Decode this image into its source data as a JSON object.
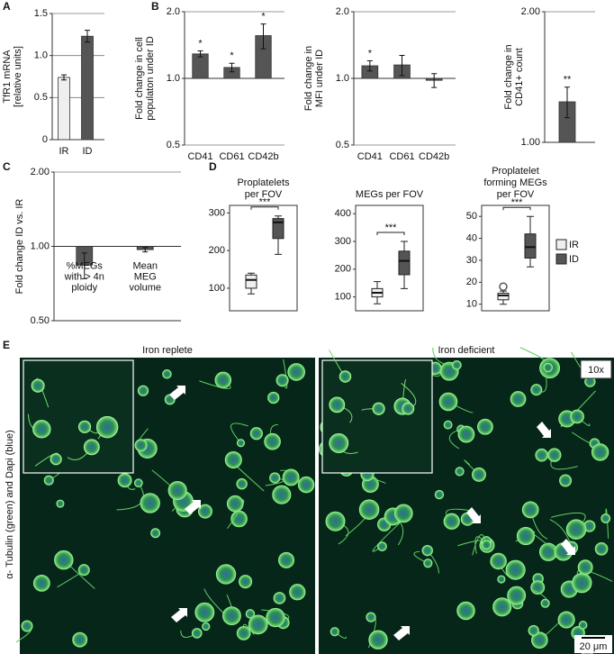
{
  "chart_data": [
    {
      "type": "bar",
      "panel": "A",
      "ylabel": [
        "TfR1 mRNA",
        "[relative units]"
      ],
      "categories": [
        "IR",
        "ID"
      ],
      "values": [
        0.74,
        1.23
      ],
      "errors": [
        0.03,
        0.07
      ],
      "colors": [
        "#efefef",
        "#555555"
      ],
      "scale": "linear",
      "base": 0,
      "ylim": [
        0,
        1.5
      ],
      "yticks": [
        0,
        0.5,
        {
          "value": 1,
          "label": "1.0"
        },
        1.5
      ],
      "grid": true
    },
    {
      "type": "bar",
      "panel": "B",
      "ylabel": [
        "Fold change in cell",
        "populaton under ID"
      ],
      "categories": [
        "CD41",
        "CD61",
        "CD42b"
      ],
      "values": [
        1.29,
        1.12,
        1.56
      ],
      "errors": [
        0.04,
        0.05,
        0.2
      ],
      "stars": [
        "*",
        "*",
        "*"
      ],
      "colors": [
        "#555555",
        "#555555",
        "#555555"
      ],
      "scale": "log",
      "base": 1,
      "ylim": [
        0.5,
        2
      ],
      "yticks": [
        0.5,
        {
          "value": 1,
          "label": "1.0"
        },
        {
          "value": 2,
          "label": "2.0"
        }
      ],
      "grid": true
    },
    {
      "type": "bar",
      "ylabel": [
        "Fold change in",
        "MFI under ID"
      ],
      "categories": [
        "CD41",
        "CD61",
        "CD42b"
      ],
      "values": [
        1.14,
        1.15,
        0.98
      ],
      "errors": [
        0.06,
        0.12,
        0.07
      ],
      "stars": [
        "*",
        null,
        null
      ],
      "colors": [
        "#555555",
        "#555555",
        "#555555"
      ],
      "scale": "log",
      "base": 1,
      "ylim": [
        0.5,
        2
      ],
      "yticks": [
        0.5,
        {
          "value": 1,
          "label": "1.0"
        },
        {
          "value": 2,
          "label": "2.0"
        }
      ],
      "grid": true
    },
    {
      "type": "bar",
      "ylabel": [
        "Fold change in",
        "CD41+ count"
      ],
      "categories": [
        null
      ],
      "values": [
        1.24
      ],
      "errors": [
        0.1
      ],
      "stars": [
        "**"
      ],
      "colors": [
        "#555555"
      ],
      "scale": "log",
      "base": 1,
      "ylim": [
        1,
        2
      ],
      "yticks": [
        {
          "value": 1,
          "label": "1.00"
        },
        {
          "value": 2,
          "label": "2.00"
        }
      ],
      "grid": true
    },
    {
      "type": "bar",
      "panel": "C",
      "ylabel": [
        "Fold change ID vs. IR"
      ],
      "categories": [
        [
          "%MEGs",
          "with > 4n",
          "ploidy"
        ],
        [
          "Mean",
          "MEG",
          "volume"
        ]
      ],
      "values": [
        0.84,
        0.97
      ],
      "errors": [
        0.1,
        0.02
      ],
      "colors": [
        "#555555",
        "#555555"
      ],
      "scale": "log",
      "base": 1,
      "ylim": [
        0.5,
        2
      ],
      "yticks": [
        {
          "value": 0.5,
          "label": "0.50"
        },
        {
          "value": 1,
          "label": "1.00"
        },
        {
          "value": 2,
          "label": "2.00"
        }
      ],
      "grid": true
    },
    {
      "type": "box",
      "panel": "D",
      "title": [
        "Proplatelets",
        "per FOV"
      ],
      "significance": "***",
      "boxes": [
        {
          "color": "#efefef",
          "min": 85,
          "q1": 100,
          "median": 122,
          "q3": 135,
          "max": 140
        },
        {
          "color": "#555555",
          "min": 190,
          "q1": 232,
          "median": 275,
          "q3": 285,
          "max": 292
        }
      ],
      "ylim": [
        40,
        320
      ],
      "yticks": [
        100,
        200,
        300
      ]
    },
    {
      "type": "box",
      "title": [
        "MEGs per FOV"
      ],
      "significance": "***",
      "boxes": [
        {
          "color": "#efefef",
          "min": 75,
          "q1": 100,
          "median": 115,
          "q3": 130,
          "max": 155
        },
        {
          "color": "#555555",
          "min": 130,
          "q1": 180,
          "median": 230,
          "q3": 265,
          "max": 300
        }
      ],
      "ylim": [
        50,
        430
      ],
      "yticks": [
        100,
        200,
        300,
        400
      ]
    },
    {
      "type": "box",
      "title": [
        "Proplatelet",
        "forming MEGs",
        "per FOV"
      ],
      "significance": "***",
      "boxes": [
        {
          "name": "IR",
          "color": "#efefef",
          "min": 10,
          "q1": 12,
          "median": 14,
          "q3": 15,
          "max": 16,
          "outliers": [
            18
          ]
        },
        {
          "name": "ID",
          "color": "#555555",
          "min": 27,
          "q1": 31,
          "median": 36,
          "q3": 42,
          "max": 50
        }
      ],
      "ylim": [
        7,
        55
      ],
      "yticks": [
        10,
        20,
        30,
        40,
        50
      ]
    }
  ],
  "image_panel": {
    "panel": "E",
    "left_title": "Iron replete",
    "right_title": "Iron deficient",
    "magnification": "10x",
    "scale_bar": "20 μm",
    "ylabel": "α- Tubulin (green) and Dapi (blue)"
  }
}
